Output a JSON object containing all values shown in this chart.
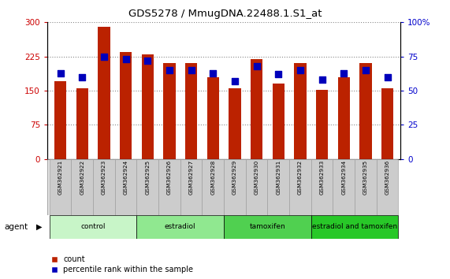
{
  "title": "GDS5278 / MmugDNA.22488.1.S1_at",
  "samples": [
    "GSM362921",
    "GSM362922",
    "GSM362923",
    "GSM362924",
    "GSM362925",
    "GSM362926",
    "GSM362927",
    "GSM362928",
    "GSM362929",
    "GSM362930",
    "GSM362931",
    "GSM362932",
    "GSM362933",
    "GSM362934",
    "GSM362935",
    "GSM362936"
  ],
  "counts": [
    170,
    155,
    290,
    235,
    230,
    210,
    210,
    180,
    155,
    220,
    165,
    210,
    152,
    180,
    210,
    155
  ],
  "percentiles": [
    63,
    60,
    75,
    73,
    72,
    65,
    65,
    63,
    57,
    68,
    62,
    65,
    58,
    63,
    65,
    60
  ],
  "groups": [
    {
      "label": "control",
      "start": 0,
      "end": 4,
      "color": "#c8f5c8"
    },
    {
      "label": "estradiol",
      "start": 4,
      "end": 8,
      "color": "#90e890"
    },
    {
      "label": "tamoxifen",
      "start": 8,
      "end": 12,
      "color": "#50d050"
    },
    {
      "label": "estradiol and tamoxifen",
      "start": 12,
      "end": 16,
      "color": "#28c828"
    }
  ],
  "bar_color": "#bb2200",
  "dot_color": "#0000bb",
  "left_ylim": [
    0,
    300
  ],
  "right_ylim": [
    0,
    100
  ],
  "left_yticks": [
    0,
    75,
    150,
    225,
    300
  ],
  "right_yticks": [
    0,
    25,
    50,
    75,
    100
  ],
  "left_yticklabels": [
    "0",
    "75",
    "150",
    "225",
    "300"
  ],
  "right_yticklabels": [
    "0",
    "25",
    "50",
    "75",
    "100%"
  ],
  "bar_width": 0.55,
  "dot_size": 40,
  "legend_count_label": "count",
  "legend_pct_label": "percentile rank within the sample",
  "agent_label": "agent",
  "left_tick_color": "#cc0000",
  "right_tick_color": "#0000cc",
  "bg_color": "#ffffff",
  "plot_bg_color": "#ffffff",
  "grid_color": "#888888",
  "tick_label_bg": "#cccccc",
  "tick_label_border": "#888888"
}
